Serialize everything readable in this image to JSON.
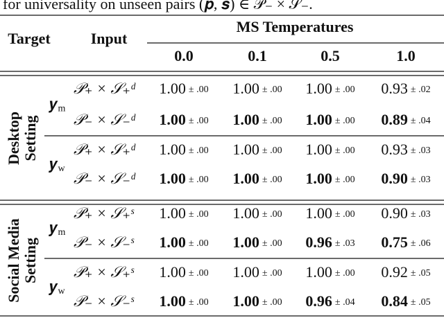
{
  "caption": "for universality on unseen pairs (𝒑, 𝒔) ∈ 𝒫₋ × 𝒮₋.",
  "header": {
    "target": "Target",
    "input": "Input",
    "group": "MS Temperatures",
    "temperatures": [
      "0.0",
      "0.1",
      "0.5",
      "1.0"
    ]
  },
  "groups": [
    {
      "setting": [
        "Desktop",
        "Setting"
      ],
      "blocks": [
        {
          "target": {
            "symbol": "𝒚",
            "sub": "m"
          },
          "rows": [
            {
              "input": "𝒫₊ × 𝒮₊ᵈ",
              "bold": false,
              "cells": [
                {
                  "value": "1.00",
                  "std": "± .00"
                },
                {
                  "value": "1.00",
                  "std": "± .00"
                },
                {
                  "value": "1.00",
                  "std": "± .00"
                },
                {
                  "value": "0.93",
                  "std": "± .02"
                }
              ]
            },
            {
              "input": "𝒫₋ × 𝒮₋ᵈ",
              "bold": true,
              "cells": [
                {
                  "value": "1.00",
                  "std": "± .00"
                },
                {
                  "value": "1.00",
                  "std": "± .00"
                },
                {
                  "value": "1.00",
                  "std": "± .00"
                },
                {
                  "value": "0.89",
                  "std": "± .04"
                }
              ]
            }
          ]
        },
        {
          "target": {
            "symbol": "𝒚",
            "sub": "w"
          },
          "rows": [
            {
              "input": "𝒫₊ × 𝒮₊ᵈ",
              "bold": false,
              "cells": [
                {
                  "value": "1.00",
                  "std": "± .00"
                },
                {
                  "value": "1.00",
                  "std": "± .00"
                },
                {
                  "value": "1.00",
                  "std": "± .00"
                },
                {
                  "value": "0.93",
                  "std": "± .03"
                }
              ]
            },
            {
              "input": "𝒫₋ × 𝒮₋ᵈ",
              "bold": true,
              "cells": [
                {
                  "value": "1.00",
                  "std": "± .00"
                },
                {
                  "value": "1.00",
                  "std": "± .00"
                },
                {
                  "value": "1.00",
                  "std": "± .00"
                },
                {
                  "value": "0.90",
                  "std": "± .03"
                }
              ]
            }
          ]
        }
      ]
    },
    {
      "setting": [
        "Social Media",
        "Setting"
      ],
      "blocks": [
        {
          "target": {
            "symbol": "𝒚",
            "sub": "m"
          },
          "rows": [
            {
              "input": "𝒫₊ × 𝒮₊ˢ",
              "bold": false,
              "cells": [
                {
                  "value": "1.00",
                  "std": "± .00"
                },
                {
                  "value": "1.00",
                  "std": "± .00"
                },
                {
                  "value": "1.00",
                  "std": "± .00"
                },
                {
                  "value": "0.90",
                  "std": "± .03"
                }
              ]
            },
            {
              "input": "𝒫₋ × 𝒮₋ˢ",
              "bold": true,
              "cells": [
                {
                  "value": "1.00",
                  "std": "± .00"
                },
                {
                  "value": "1.00",
                  "std": "± .00"
                },
                {
                  "value": "0.96",
                  "std": "± .03"
                },
                {
                  "value": "0.75",
                  "std": "± .06"
                }
              ]
            }
          ]
        },
        {
          "target": {
            "symbol": "𝒚",
            "sub": "w"
          },
          "rows": [
            {
              "input": "𝒫₊ × 𝒮₊ˢ",
              "bold": false,
              "cells": [
                {
                  "value": "1.00",
                  "std": "± .00"
                },
                {
                  "value": "1.00",
                  "std": "± .00"
                },
                {
                  "value": "1.00",
                  "std": "± .00"
                },
                {
                  "value": "0.92",
                  "std": "± .05"
                }
              ]
            },
            {
              "input": "𝒫₋ × 𝒮₋ˢ",
              "bold": true,
              "cells": [
                {
                  "value": "1.00",
                  "std": "± .00"
                },
                {
                  "value": "1.00",
                  "std": "± .00"
                },
                {
                  "value": "0.96",
                  "std": "± .04"
                },
                {
                  "value": "0.84",
                  "std": "± .05"
                }
              ]
            }
          ]
        }
      ]
    }
  ]
}
